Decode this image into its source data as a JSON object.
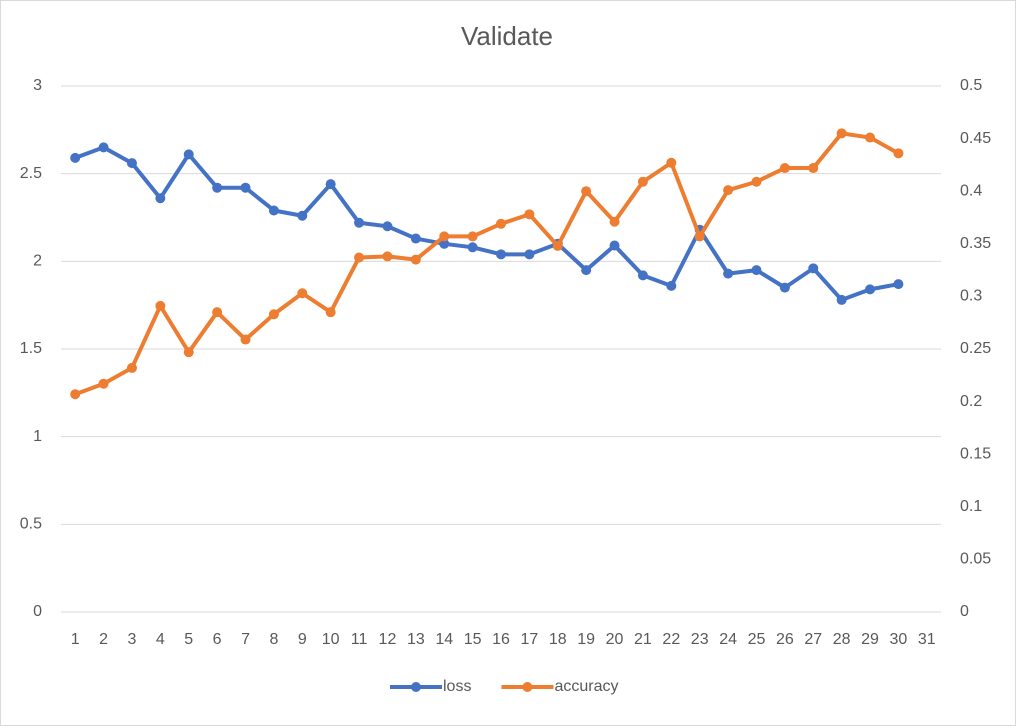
{
  "chart_data": {
    "type": "line",
    "title": "Validate",
    "categories": [
      "1",
      "2",
      "3",
      "4",
      "5",
      "6",
      "7",
      "8",
      "9",
      "10",
      "11",
      "12",
      "13",
      "14",
      "15",
      "16",
      "17",
      "18",
      "19",
      "20",
      "21",
      "22",
      "23",
      "24",
      "25",
      "26",
      "27",
      "28",
      "29",
      "30",
      "31"
    ],
    "series": [
      {
        "name": "loss",
        "color": "#4472c4",
        "values": [
          2.59,
          2.65,
          2.56,
          2.36,
          2.61,
          2.42,
          2.42,
          2.29,
          2.26,
          2.44,
          2.22,
          2.2,
          2.13,
          2.1,
          2.08,
          2.04,
          2.04,
          2.1,
          1.95,
          2.09,
          1.92,
          1.86,
          2.18,
          1.93,
          1.95,
          1.85,
          1.96,
          1.78,
          1.84,
          1.87,
          null
        ]
      },
      {
        "name": "accuracy",
        "color": "#ed7d31",
        "axis": "y2",
        "values": [
          0.207,
          0.217,
          0.232,
          0.291,
          0.247,
          0.285,
          0.259,
          0.283,
          0.303,
          0.285,
          0.337,
          0.338,
          0.335,
          0.357,
          0.357,
          0.369,
          0.378,
          0.348,
          0.4,
          0.371,
          0.409,
          0.427,
          0.357,
          0.401,
          0.409,
          0.422,
          0.422,
          0.455,
          0.451,
          0.436,
          null
        ]
      }
    ],
    "ylim": [
      0,
      3
    ],
    "yticks": [
      0,
      0.5,
      1,
      1.5,
      2,
      2.5,
      3
    ],
    "y2lim": [
      0,
      0.5
    ],
    "y2ticks": [
      0,
      0.05,
      0.1,
      0.15,
      0.2,
      0.25,
      0.3,
      0.35,
      0.4,
      0.45,
      0.5
    ],
    "grid": true,
    "legend": "bottom"
  }
}
